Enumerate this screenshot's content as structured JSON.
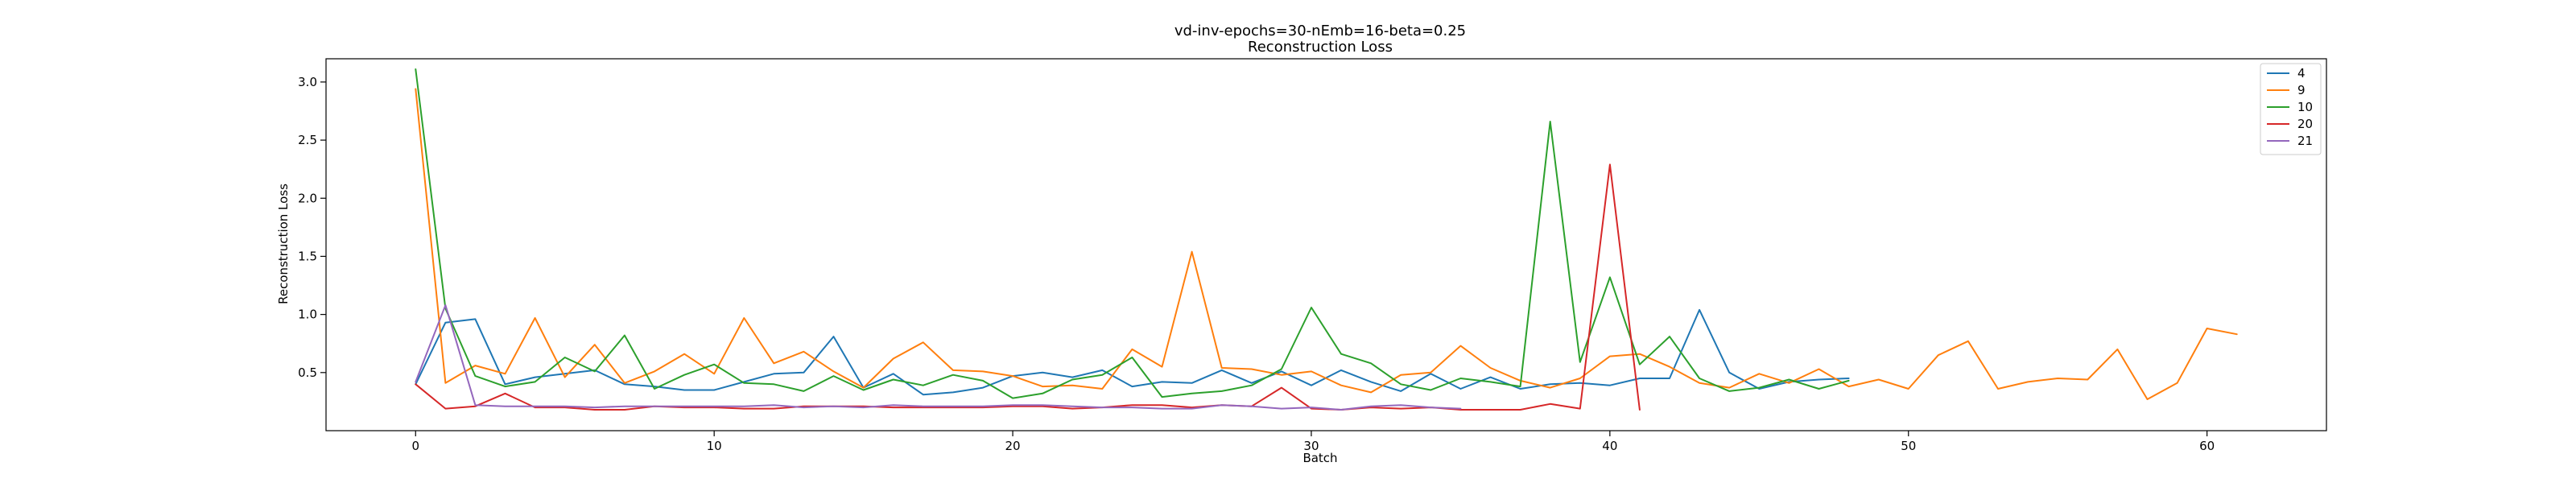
{
  "chart_data": {
    "type": "line",
    "title": "vd-inv-epochs=30-nEmb=16-beta=0.25",
    "subtitle": "Reconstruction Loss",
    "xlabel": "Batch",
    "ylabel": "Reconstruction Loss",
    "xlim": [
      -3,
      64
    ],
    "ylim": [
      0.0,
      3.2
    ],
    "xticks": [
      0,
      10,
      20,
      30,
      40,
      50,
      60
    ],
    "yticks": [
      0.5,
      1.0,
      1.5,
      2.0,
      2.5,
      3.0
    ],
    "grid": false,
    "legend_position": "top-right",
    "series": [
      {
        "name": "4",
        "color": "#1f77b4",
        "values": [
          0.4,
          0.93,
          0.96,
          0.4,
          0.46,
          0.49,
          0.52,
          0.4,
          0.38,
          0.35,
          0.35,
          0.42,
          0.49,
          0.5,
          0.81,
          0.37,
          0.49,
          0.31,
          0.33,
          0.37,
          0.47,
          0.5,
          0.46,
          0.52,
          0.38,
          0.42,
          0.41,
          0.52,
          0.41,
          0.51,
          0.39,
          0.52,
          0.42,
          0.34,
          0.49,
          0.36,
          0.46,
          0.36,
          0.4,
          0.41,
          0.39,
          0.45,
          0.45,
          1.04,
          0.5,
          0.36,
          0.42,
          0.44,
          0.45
        ]
      },
      {
        "name": "9",
        "color": "#ff7f0e",
        "values": [
          2.94,
          0.41,
          0.56,
          0.49,
          0.97,
          0.46,
          0.74,
          0.41,
          0.51,
          0.66,
          0.49,
          0.97,
          0.58,
          0.68,
          0.51,
          0.37,
          0.62,
          0.76,
          0.52,
          0.51,
          0.47,
          0.38,
          0.39,
          0.36,
          0.7,
          0.55,
          1.54,
          0.54,
          0.53,
          0.48,
          0.51,
          0.39,
          0.33,
          0.48,
          0.5,
          0.73,
          0.54,
          0.43,
          0.37,
          0.45,
          0.64,
          0.66,
          0.55,
          0.41,
          0.37,
          0.49,
          0.41,
          0.53,
          0.38,
          0.44,
          0.36,
          0.65,
          0.77,
          0.36,
          0.42,
          0.45,
          0.44,
          0.7,
          0.27,
          0.41,
          0.88,
          0.83
        ]
      },
      {
        "name": "10",
        "color": "#2ca02c",
        "values": [
          3.11,
          1.05,
          0.47,
          0.38,
          0.42,
          0.63,
          0.51,
          0.82,
          0.36,
          0.48,
          0.57,
          0.41,
          0.4,
          0.34,
          0.47,
          0.35,
          0.44,
          0.39,
          0.48,
          0.43,
          0.28,
          0.32,
          0.44,
          0.48,
          0.63,
          0.29,
          0.32,
          0.34,
          0.39,
          0.53,
          1.06,
          0.66,
          0.58,
          0.4,
          0.35,
          0.45,
          0.42,
          0.38,
          2.66,
          0.59,
          1.32,
          0.57,
          0.81,
          0.45,
          0.34,
          0.37,
          0.44,
          0.36,
          0.43
        ]
      },
      {
        "name": "20",
        "color": "#d62728",
        "values": [
          0.4,
          0.19,
          0.21,
          0.32,
          0.2,
          0.2,
          0.18,
          0.18,
          0.21,
          0.2,
          0.2,
          0.19,
          0.19,
          0.21,
          0.21,
          0.21,
          0.2,
          0.2,
          0.2,
          0.2,
          0.21,
          0.21,
          0.19,
          0.2,
          0.22,
          0.22,
          0.2,
          0.22,
          0.21,
          0.37,
          0.19,
          0.18,
          0.2,
          0.19,
          0.2,
          0.18,
          0.18,
          0.18,
          0.23,
          0.19,
          2.29,
          0.18
        ]
      },
      {
        "name": "21",
        "color": "#9467bd",
        "values": [
          0.42,
          1.08,
          0.22,
          0.21,
          0.21,
          0.21,
          0.2,
          0.21,
          0.21,
          0.21,
          0.21,
          0.21,
          0.22,
          0.2,
          0.21,
          0.2,
          0.22,
          0.21,
          0.21,
          0.21,
          0.22,
          0.22,
          0.21,
          0.2,
          0.2,
          0.19,
          0.19,
          0.22,
          0.21,
          0.19,
          0.2,
          0.18,
          0.21,
          0.22,
          0.2,
          0.19
        ]
      }
    ]
  }
}
